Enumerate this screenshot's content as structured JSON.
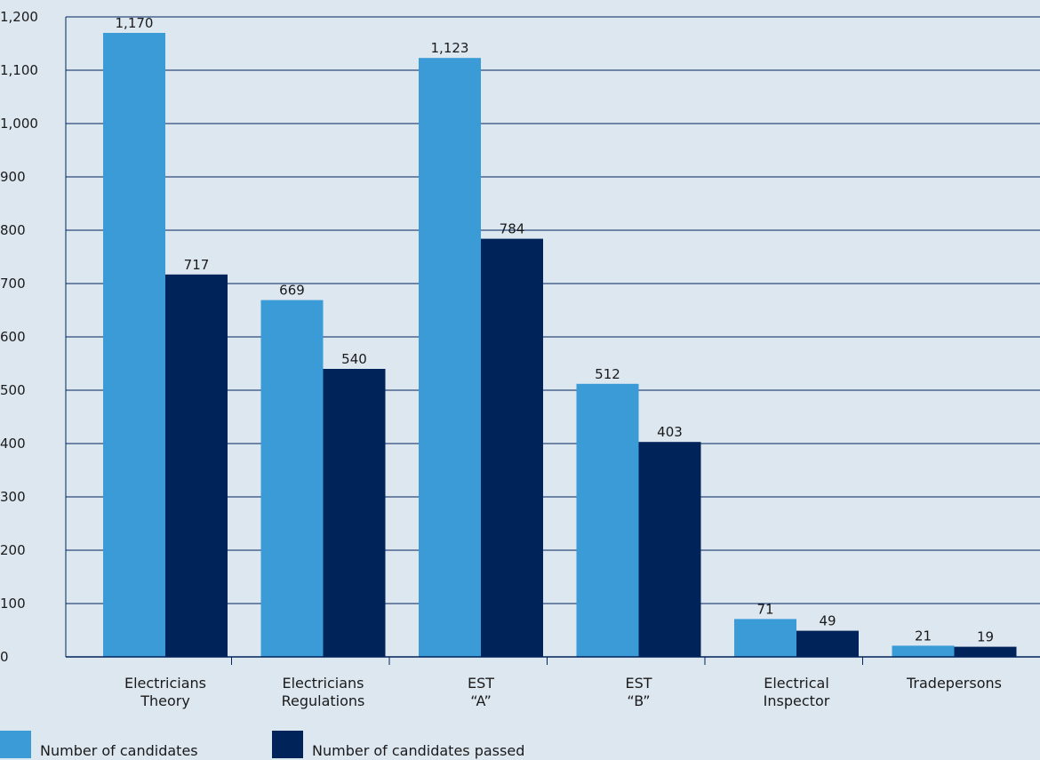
{
  "chart_data": {
    "type": "bar",
    "categories": [
      [
        "Electricians",
        "Theory"
      ],
      [
        "Electricians",
        "Regulations"
      ],
      [
        "EST",
        "“A”"
      ],
      [
        "EST",
        "“B”"
      ],
      [
        "Electrical",
        "Inspector"
      ],
      [
        "Tradepersons"
      ]
    ],
    "series": [
      {
        "name": "Number of candidates",
        "color": "#3a9bd7",
        "values": [
          1170,
          669,
          1123,
          512,
          71,
          21
        ],
        "labels": [
          "1,170",
          "669",
          "1,123",
          "512",
          "71",
          "21"
        ]
      },
      {
        "name": "Number of candidates passed",
        "color": "#00235a",
        "values": [
          717,
          540,
          784,
          403,
          49,
          19
        ],
        "labels": [
          "717",
          "540",
          "784",
          "403",
          "49",
          "19"
        ]
      }
    ],
    "ylim": [
      0,
      1200
    ],
    "yticks": [
      {
        "value": 0,
        "label": "0"
      },
      {
        "value": 100,
        "label": "100"
      },
      {
        "value": 200,
        "label": "200"
      },
      {
        "value": 300,
        "label": "300"
      },
      {
        "value": 400,
        "label": "400"
      },
      {
        "value": 500,
        "label": "500"
      },
      {
        "value": 600,
        "label": "600"
      },
      {
        "value": 700,
        "label": "700"
      },
      {
        "value": 800,
        "label": "800"
      },
      {
        "value": 900,
        "label": "900"
      },
      {
        "value": 1000,
        "label": "1,000"
      },
      {
        "value": 1100,
        "label": "1,100"
      },
      {
        "value": 1200,
        "label": "1,200"
      }
    ],
    "grid": true,
    "gridline_color": "#00235a",
    "legend_position": "bottom-left"
  }
}
